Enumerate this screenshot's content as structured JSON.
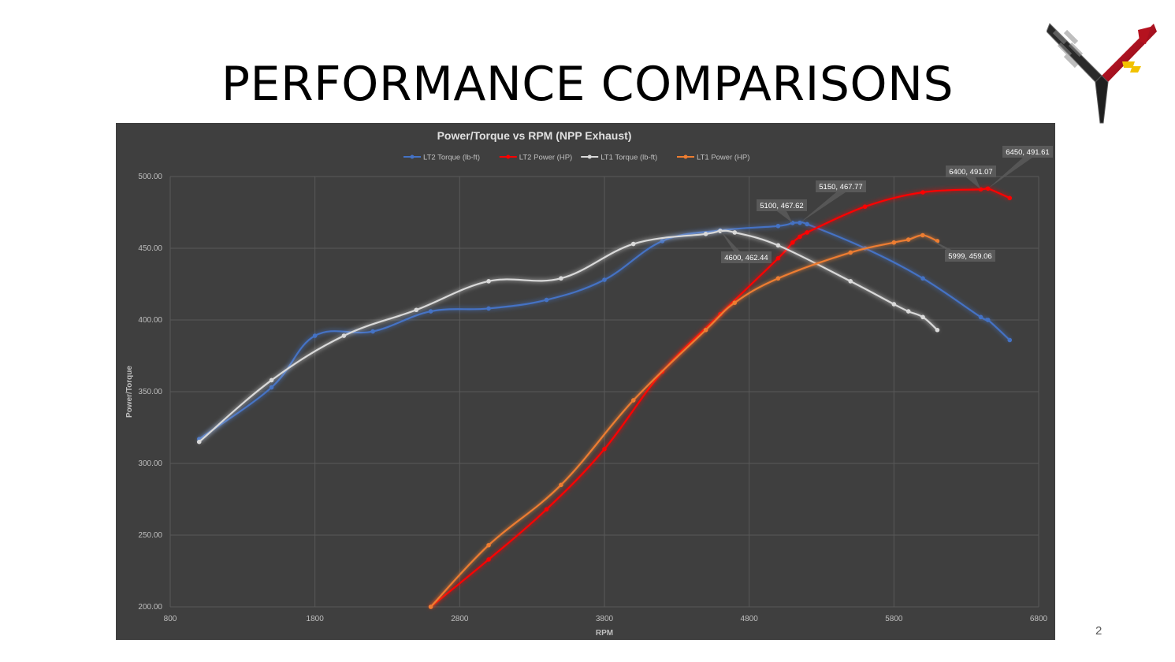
{
  "slide": {
    "title": "PERFORMANCE COMPARISONS",
    "page_number": "2",
    "logo_icon": "corvette-crossed-flags-logo"
  },
  "colors": {
    "background": "#3f3f3f",
    "gridline": "#595959",
    "axis_text": "#bfbfbf",
    "LT2 Torque (lb-ft)": "#4472c4",
    "LT2 Power (HP)": "#ff0000",
    "LT1 Torque (lb-ft)": "#d9d9d9",
    "LT1 Power (HP)": "#ed7d31"
  },
  "chart_data": {
    "type": "scatter",
    "title": "Power/Torque vs RPM (NPP Exhaust)",
    "xlabel": "RPM",
    "ylabel": "Power/Torque",
    "xlim": [
      800,
      6800
    ],
    "ylim": [
      200,
      500
    ],
    "xticks": [
      "800",
      "1800",
      "2800",
      "3800",
      "4800",
      "5800",
      "6800"
    ],
    "yticks": [
      "200.00",
      "250.00",
      "300.00",
      "350.00",
      "400.00",
      "450.00",
      "500.00"
    ],
    "grid": true,
    "legend_position": "top",
    "series": [
      {
        "name": "LT2 Torque (lb-ft)",
        "points": [
          [
            1000,
            317
          ],
          [
            1500,
            353
          ],
          [
            1800,
            389
          ],
          [
            2200,
            392
          ],
          [
            2600,
            406
          ],
          [
            3000,
            408
          ],
          [
            3400,
            414
          ],
          [
            3800,
            428
          ],
          [
            4200,
            455
          ],
          [
            4600,
            462.44
          ],
          [
            5000,
            465.5
          ],
          [
            5100,
            467.62
          ],
          [
            5150,
            467.77
          ],
          [
            5200,
            466.8
          ],
          [
            5600,
            450
          ],
          [
            6000,
            429
          ],
          [
            6400,
            402
          ],
          [
            6450,
            400
          ],
          [
            6600,
            386
          ]
        ]
      },
      {
        "name": "LT2 Power (HP)",
        "points": [
          [
            2600,
            200
          ],
          [
            3000,
            233
          ],
          [
            3400,
            268
          ],
          [
            3800,
            310
          ],
          [
            4200,
            364
          ],
          [
            4600,
            404
          ],
          [
            5000,
            443
          ],
          [
            5100,
            454
          ],
          [
            5150,
            458
          ],
          [
            5200,
            461
          ],
          [
            5600,
            479
          ],
          [
            6000,
            489
          ],
          [
            6400,
            491.07
          ],
          [
            6450,
            491.61
          ],
          [
            6600,
            485
          ]
        ]
      },
      {
        "name": "LT1 Torque (lb-ft)",
        "points": [
          [
            1000,
            315
          ],
          [
            1500,
            358
          ],
          [
            2000,
            389
          ],
          [
            2500,
            407
          ],
          [
            3000,
            427
          ],
          [
            3500,
            429
          ],
          [
            4000,
            453
          ],
          [
            4500,
            460
          ],
          [
            4600,
            462
          ],
          [
            4700,
            461
          ],
          [
            5000,
            452
          ],
          [
            5500,
            427
          ],
          [
            5800,
            411
          ],
          [
            5900,
            406
          ],
          [
            6000,
            402
          ],
          [
            6100,
            393
          ]
        ]
      },
      {
        "name": "LT1 Power (HP)",
        "points": [
          [
            2600,
            200
          ],
          [
            3000,
            243
          ],
          [
            3500,
            285
          ],
          [
            4000,
            344
          ],
          [
            4500,
            393
          ],
          [
            4700,
            412
          ],
          [
            5000,
            429
          ],
          [
            5500,
            447
          ],
          [
            5800,
            454
          ],
          [
            5900,
            456
          ],
          [
            5999,
            459.06
          ],
          [
            6100,
            455
          ]
        ]
      }
    ],
    "annotations": [
      {
        "text": "6450, 491.61",
        "x": 6450,
        "y": 491.61,
        "series": "LT2 Power (HP)"
      },
      {
        "text": "6400, 491.07",
        "x": 6400,
        "y": 491.07,
        "series": "LT2 Power (HP)"
      },
      {
        "text": "5150, 467.77",
        "x": 5150,
        "y": 467.77,
        "series": "LT2 Torque (lb-ft)"
      },
      {
        "text": "5100, 467.62",
        "x": 5100,
        "y": 467.62,
        "series": "LT2 Torque (lb-ft)"
      },
      {
        "text": "4600, 462.44",
        "x": 4600,
        "y": 462.44,
        "series": "LT2 Torque (lb-ft)"
      },
      {
        "text": "5999, 459.06",
        "x": 5999,
        "y": 459.06,
        "series": "LT1 Power (HP)"
      }
    ]
  }
}
